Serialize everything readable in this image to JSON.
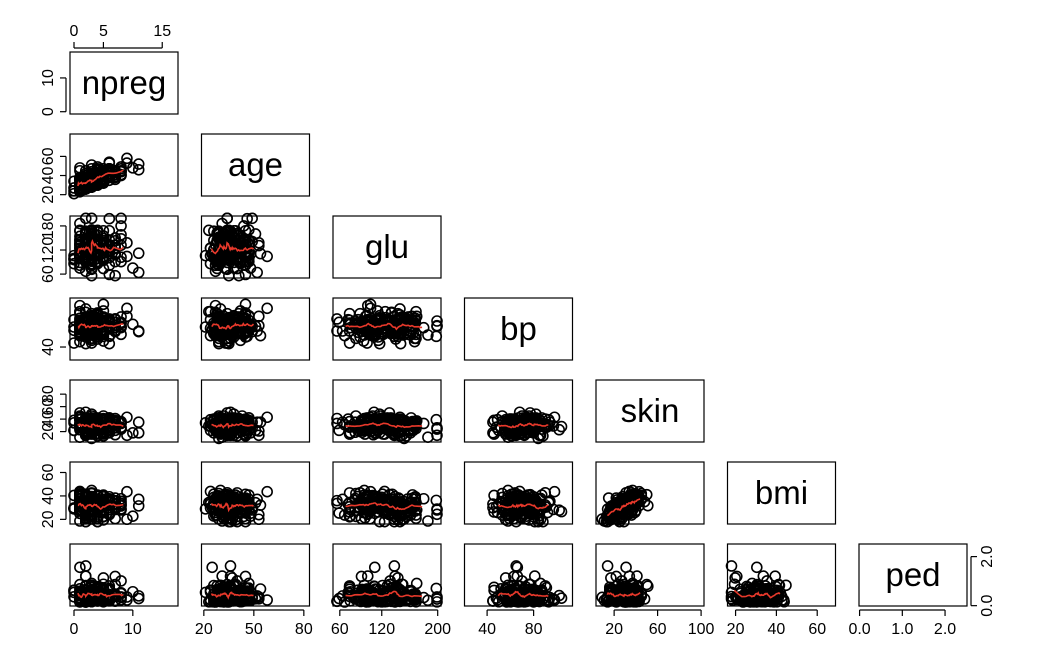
{
  "chart_data": {
    "type": "scatter",
    "layout": "scatterplot-matrix-lower",
    "variables": [
      {
        "name": "npreg",
        "range": [
          0,
          17
        ],
        "ticks": [
          0,
          5,
          15
        ],
        "ticks_alt": [
          0,
          10
        ]
      },
      {
        "name": "age",
        "range": [
          21,
          81
        ],
        "ticks": [
          20,
          40,
          60
        ],
        "ticks_alt": [
          20,
          50,
          80
        ]
      },
      {
        "name": "glu",
        "range": [
          56,
          199
        ],
        "ticks": [
          60,
          120,
          180
        ],
        "ticks_alt": [
          60,
          120,
          200
        ]
      },
      {
        "name": "bp",
        "range": [
          24,
          110
        ],
        "ticks": [
          40
        ],
        "ticks_alt": [
          40,
          80
        ]
      },
      {
        "name": "skin",
        "range": [
          7,
          99
        ],
        "ticks": [
          20,
          40,
          60,
          80
        ],
        "ticks_alt": [
          20,
          60,
          100
        ]
      },
      {
        "name": "bmi",
        "range": [
          18,
          67
        ],
        "ticks": [
          20,
          40,
          60
        ],
        "ticks_alt": [
          20,
          40,
          60
        ]
      },
      {
        "name": "ped",
        "range": [
          0.08,
          2.42
        ],
        "ticks": [
          0.0,
          2.0
        ],
        "ticks_alt": [
          0.0,
          1.0,
          2.0
        ],
        "tick_labels": [
          "0.0",
          "2.0"
        ],
        "tick_labels_alt": [
          "0.0",
          "1.0",
          "2.0"
        ]
      }
    ],
    "smoother_color": "#e8392b",
    "point_style": "open-circle",
    "title": "",
    "xlabel": "",
    "ylabel": "",
    "grid": false,
    "legend": "none"
  }
}
